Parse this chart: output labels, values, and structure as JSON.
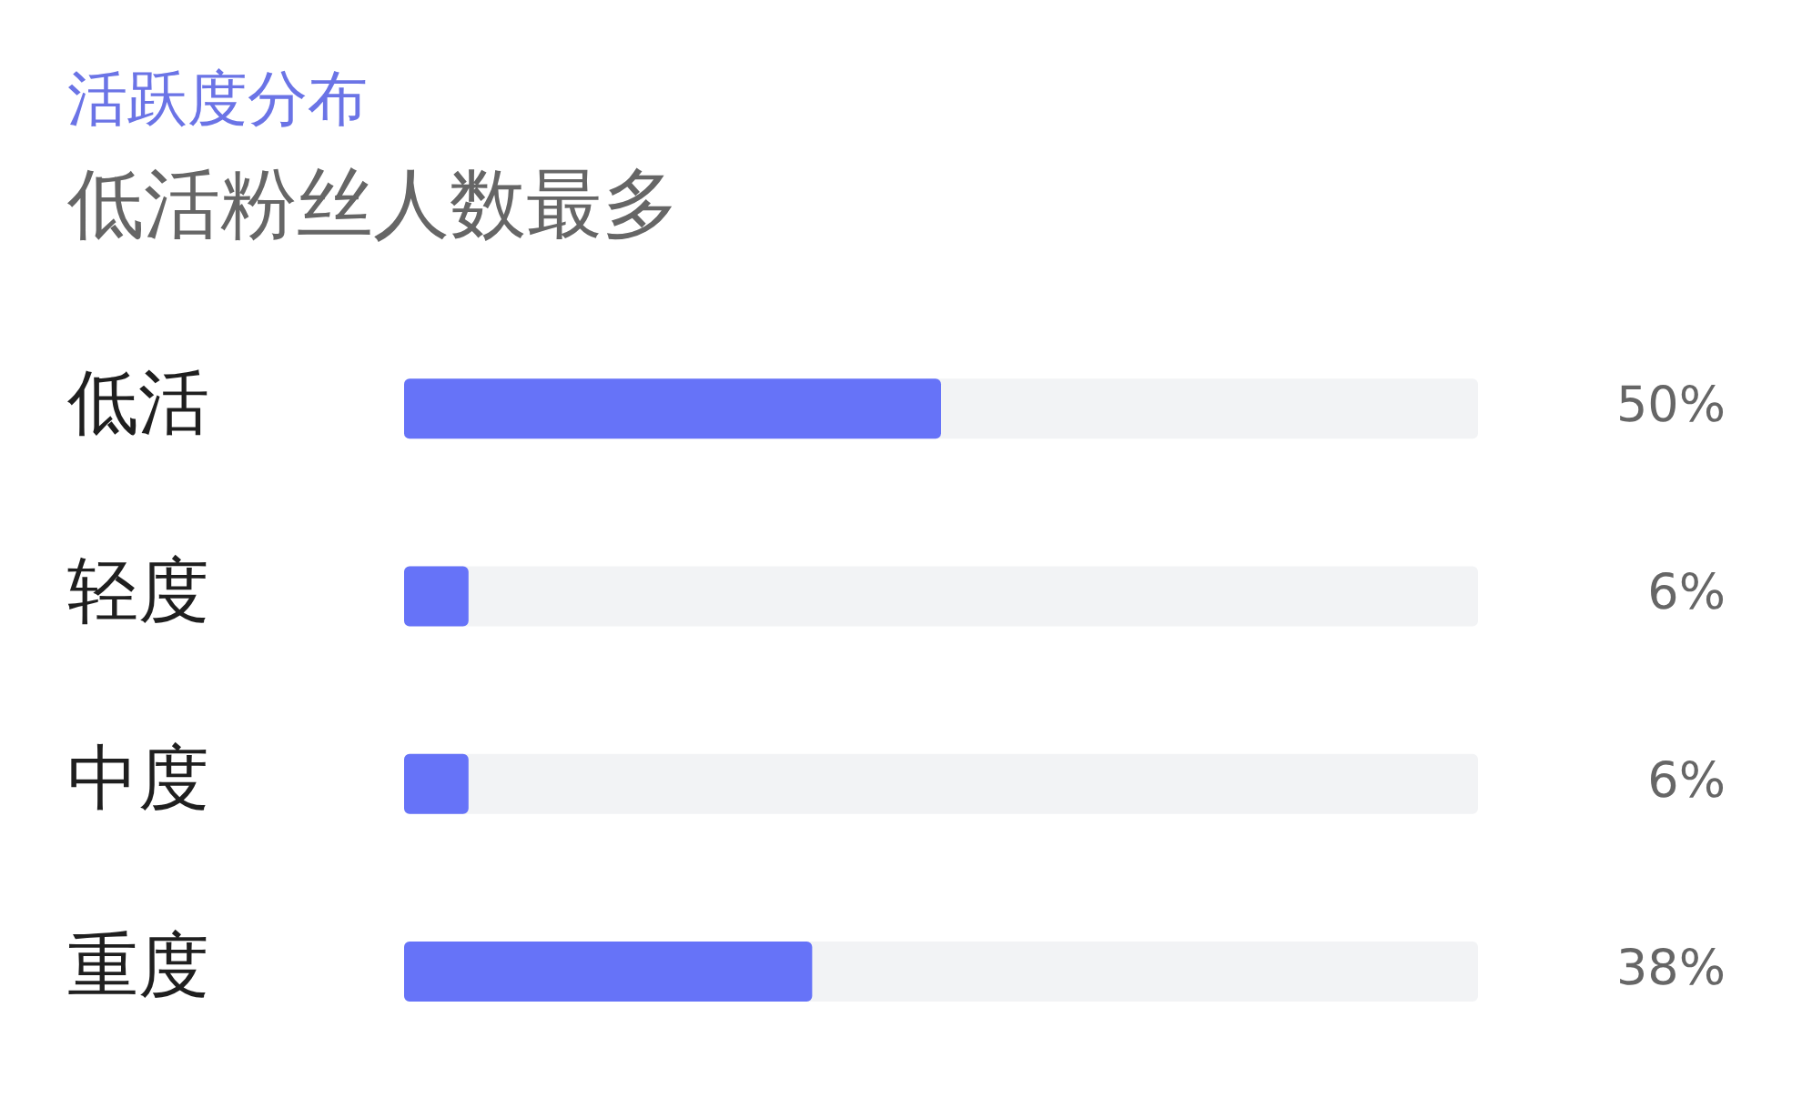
{
  "chart_data": {
    "type": "bar",
    "orientation": "horizontal",
    "title": "活跃度分布",
    "subtitle": "低活粉丝人数最多",
    "categories": [
      "低活",
      "轻度",
      "中度",
      "重度"
    ],
    "values": [
      50,
      6,
      6,
      38
    ],
    "value_labels": [
      "50%",
      "6%",
      "6%",
      "38%"
    ],
    "color": "#6673f8",
    "xlim": [
      0,
      100
    ],
    "tick_labels": "y",
    "grid": false,
    "legend": false
  }
}
